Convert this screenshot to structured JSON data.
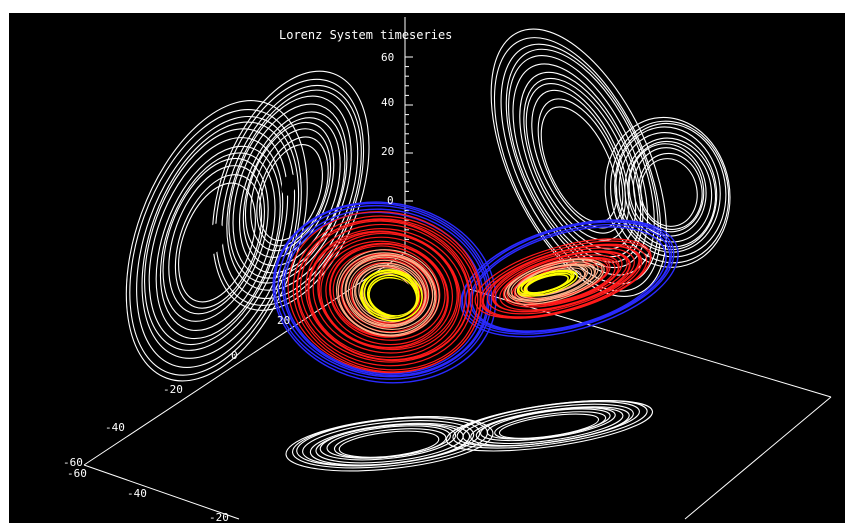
{
  "chart_data": {
    "type": "line",
    "title": "Lorenz System timeseries",
    "z_ticks": [
      "60",
      "40",
      "20",
      "0"
    ],
    "x_ticks": [
      "20",
      "0",
      "-20",
      "-40",
      "-60"
    ],
    "y_ticks": [
      "-60",
      "-40",
      "-20"
    ],
    "projections": [
      "x-z",
      "y-z",
      "x-y"
    ],
    "colors": {
      "background": "#000000",
      "projection": "#ffffff",
      "outer": "#2a2aff",
      "middle": "#ff1a1a",
      "inner": "#ffb08a",
      "core": "#ffff00"
    }
  }
}
